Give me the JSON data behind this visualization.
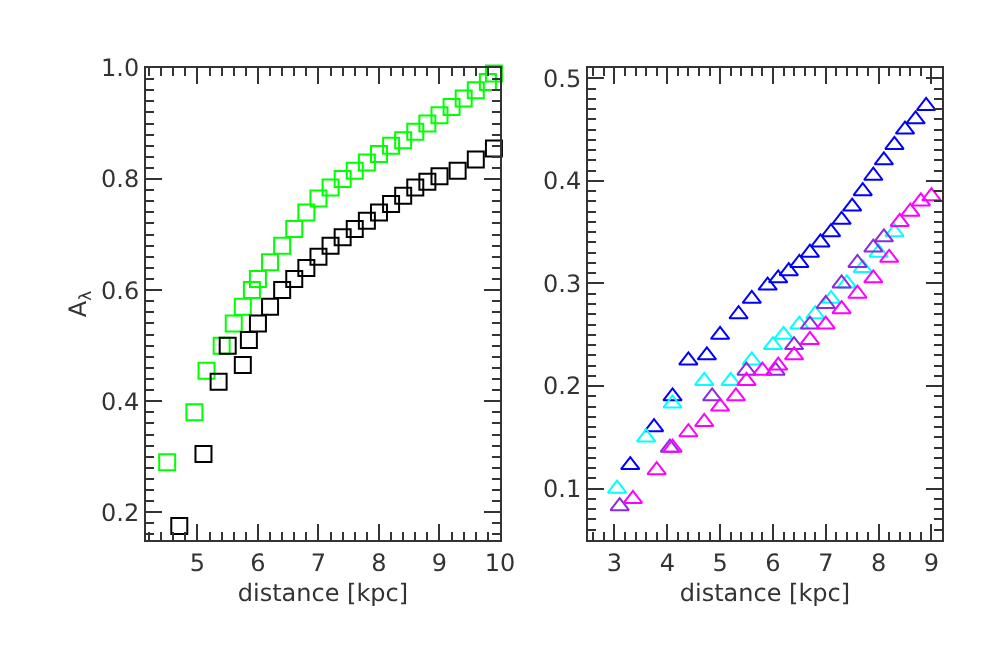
{
  "chart_data": [
    {
      "type": "scatter",
      "xlabel": "distance [kpc]",
      "ylabel": "A$_{λ}$",
      "xlim": [
        4.15,
        10
      ],
      "ylim": [
        0.15,
        1.0
      ],
      "xticks": [
        5,
        6,
        7,
        8,
        9,
        10
      ],
      "yticks": [
        0.2,
        0.4,
        0.6,
        0.8,
        {
          "value": 1,
          "label": "1.0"
        }
      ],
      "marker": "square",
      "series": [
        {
          "color": "#00ff00",
          "x": [
            4.5,
            4.95,
            5.15,
            5.4,
            5.6,
            5.75,
            5.9,
            6.0,
            6.2,
            6.4,
            6.6,
            6.8,
            7.0,
            7.2,
            7.4,
            7.6,
            7.8,
            8.0,
            8.2,
            8.4,
            8.6,
            8.8,
            9.0,
            9.2,
            9.4,
            9.6,
            9.8,
            9.9
          ],
          "values": [
            0.29,
            0.38,
            0.455,
            0.5,
            0.54,
            0.57,
            0.6,
            0.62,
            0.65,
            0.68,
            0.71,
            0.74,
            0.765,
            0.785,
            0.8,
            0.815,
            0.83,
            0.845,
            0.86,
            0.87,
            0.885,
            0.9,
            0.915,
            0.93,
            0.945,
            0.96,
            0.975,
            0.99
          ]
        },
        {
          "color": "#000000",
          "x": [
            4.7,
            5.1,
            5.35,
            5.5,
            5.75,
            5.85,
            6.0,
            6.2,
            6.4,
            6.6,
            6.8,
            7.0,
            7.2,
            7.4,
            7.6,
            7.8,
            8.0,
            8.2,
            8.4,
            8.6,
            8.8,
            9.0,
            9.3,
            9.6,
            9.9
          ],
          "values": [
            0.175,
            0.305,
            0.435,
            0.5,
            0.465,
            0.51,
            0.54,
            0.57,
            0.6,
            0.62,
            0.64,
            0.66,
            0.68,
            0.695,
            0.71,
            0.725,
            0.74,
            0.755,
            0.77,
            0.785,
            0.795,
            0.805,
            0.815,
            0.835,
            0.855
          ]
        }
      ]
    },
    {
      "type": "scatter",
      "xlabel": "distance [kpc]",
      "xlim": [
        2.5,
        9.2
      ],
      "ylim": [
        0.05,
        0.51
      ],
      "xticks": [
        3,
        4,
        5,
        6,
        7,
        8,
        9
      ],
      "yticks": [
        0.1,
        0.2,
        0.3,
        0.4,
        0.5
      ],
      "marker": "triangle",
      "series": [
        {
          "color": "#0000ff",
          "x": [
            3.3,
            3.75,
            4.1,
            4.4,
            4.75,
            5.0,
            5.35,
            5.6,
            5.9,
            6.1,
            6.3,
            6.5,
            6.7,
            6.9,
            7.1,
            7.3,
            7.5,
            7.7,
            7.9,
            8.1,
            8.3,
            8.5,
            8.7,
            8.9
          ],
          "values": [
            0.123,
            0.16,
            0.19,
            0.225,
            0.23,
            0.25,
            0.27,
            0.285,
            0.298,
            0.305,
            0.312,
            0.32,
            0.33,
            0.34,
            0.35,
            0.362,
            0.375,
            0.39,
            0.405,
            0.42,
            0.435,
            0.45,
            0.46,
            0.473
          ]
        },
        {
          "color": "#00ffff",
          "x": [
            3.05,
            3.6,
            4.1,
            4.7,
            5.2,
            5.6,
            6.0,
            6.2,
            6.5,
            6.8,
            7.1,
            7.4,
            7.7,
            8.0,
            8.3
          ],
          "values": [
            0.1,
            0.15,
            0.183,
            0.205,
            0.205,
            0.225,
            0.24,
            0.25,
            0.26,
            0.27,
            0.285,
            0.3,
            0.315,
            0.33,
            0.35
          ]
        },
        {
          "color": "#8a2be2",
          "x": [
            3.1,
            4.05,
            4.85,
            5.5,
            6.05,
            6.4,
            6.7,
            7.0,
            7.3,
            7.6,
            7.9,
            8.1
          ],
          "values": [
            0.083,
            0.14,
            0.19,
            0.215,
            0.215,
            0.24,
            0.26,
            0.28,
            0.3,
            0.32,
            0.335,
            0.345
          ]
        },
        {
          "color": "#ff00ff",
          "x": [
            3.35,
            3.8,
            4.1,
            4.4,
            4.7,
            5.0,
            5.3,
            5.5,
            5.8,
            6.1,
            6.4,
            6.7,
            7.0,
            7.3,
            7.6,
            7.9,
            8.2,
            8.4,
            8.6,
            8.8,
            9.0
          ],
          "values": [
            0.09,
            0.118,
            0.14,
            0.155,
            0.165,
            0.18,
            0.19,
            0.205,
            0.215,
            0.22,
            0.23,
            0.245,
            0.26,
            0.275,
            0.29,
            0.305,
            0.325,
            0.36,
            0.37,
            0.38,
            0.385
          ]
        }
      ]
    }
  ]
}
